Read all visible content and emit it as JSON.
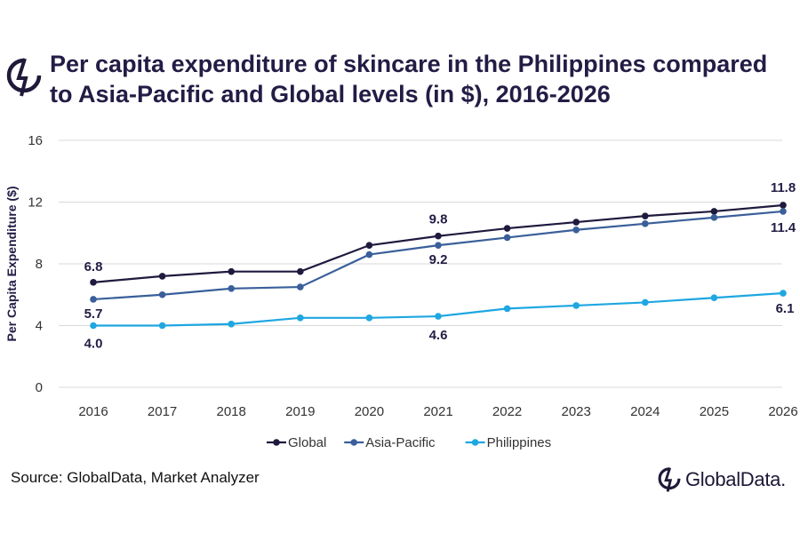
{
  "title": "Per capita expenditure of skincare in the Philippines compared to Asia-Pacific and Global levels (in $), 2016-2026",
  "source": "Source: GlobalData, Market Analyzer",
  "brand": "GlobalData.",
  "colors": {
    "Global": "#1f1a3d",
    "Asia-Pacific": "#3a5f9a",
    "Philippines": "#1ea7e1",
    "grid": "#d9d9d9",
    "text": "#231c45"
  },
  "chart_data": {
    "type": "line",
    "ylabel": "Per Capita Expenditure ($)",
    "xlabel": "",
    "ylim": [
      0,
      16
    ],
    "yticks": [
      0,
      4,
      8,
      12,
      16
    ],
    "grid": true,
    "legend_position": "bottom",
    "x": [
      "2016",
      "2017",
      "2018",
      "2019",
      "2020",
      "2021",
      "2022",
      "2023",
      "2024",
      "2025",
      "2026"
    ],
    "series": [
      {
        "name": "Global",
        "values": [
          6.8,
          7.2,
          7.5,
          7.5,
          9.2,
          9.8,
          10.3,
          10.7,
          11.1,
          11.4,
          11.8
        ]
      },
      {
        "name": "Asia-Pacific",
        "values": [
          5.7,
          6.0,
          6.4,
          6.5,
          8.6,
          9.2,
          9.7,
          10.2,
          10.6,
          11.0,
          11.4
        ]
      },
      {
        "name": "Philippines",
        "values": [
          4.0,
          4.0,
          4.1,
          4.5,
          4.5,
          4.6,
          5.1,
          5.3,
          5.5,
          5.8,
          6.1
        ]
      }
    ],
    "data_labels": [
      {
        "series": "Global",
        "x": "2016",
        "text": "6.8"
      },
      {
        "series": "Global",
        "x": "2021",
        "text": "9.8"
      },
      {
        "series": "Global",
        "x": "2026",
        "text": "11.8"
      },
      {
        "series": "Asia-Pacific",
        "x": "2016",
        "text": "5.7"
      },
      {
        "series": "Asia-Pacific",
        "x": "2021",
        "text": "9.2"
      },
      {
        "series": "Asia-Pacific",
        "x": "2026",
        "text": "11.4"
      },
      {
        "series": "Philippines",
        "x": "2016",
        "text": "4.0"
      },
      {
        "series": "Philippines",
        "x": "2021",
        "text": "4.6"
      },
      {
        "series": "Philippines",
        "x": "2026",
        "text": "6.1"
      }
    ]
  }
}
